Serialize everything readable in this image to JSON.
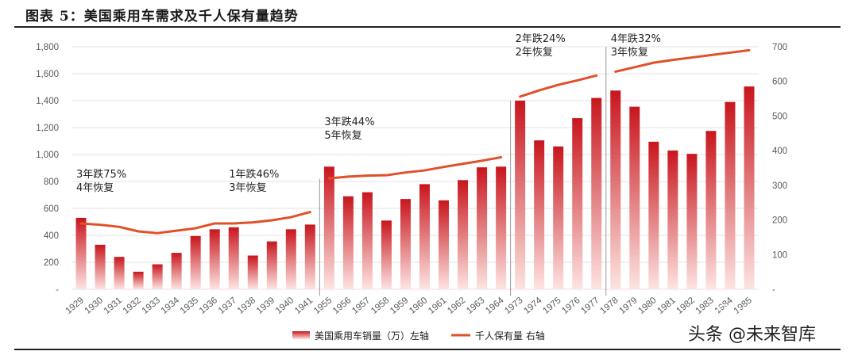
{
  "figure": {
    "title": "图表 5：美国乘用车需求及千人保有量趋势"
  },
  "watermark": {
    "text": "头条 @未来智库",
    "ghost_text": "未来智库"
  },
  "chart_data": {
    "type": "bar",
    "categories": [
      "1929",
      "1930",
      "1931",
      "1932",
      "1933",
      "1934",
      "1935",
      "1936",
      "1937",
      "1938",
      "1939",
      "1940",
      "1941",
      "1955",
      "1956",
      "1957",
      "1958",
      "1959",
      "1960",
      "1961",
      "1962",
      "1963",
      "1964",
      "1973",
      "1974",
      "1975",
      "1976",
      "1977",
      "1978",
      "1979",
      "1980",
      "1981",
      "1982",
      "1983",
      "1984",
      "1985"
    ],
    "series": [
      {
        "name": "美国乘用车销量（万）左轴",
        "kind": "bar",
        "axis": "left",
        "values": [
          530,
          330,
          240,
          130,
          185,
          270,
          395,
          445,
          460,
          250,
          355,
          445,
          480,
          910,
          690,
          720,
          510,
          670,
          780,
          660,
          810,
          905,
          910,
          1400,
          1105,
          1060,
          1270,
          1420,
          1475,
          1355,
          1095,
          1030,
          1005,
          1175,
          1390,
          1505
        ]
      },
      {
        "name": "千人保有量 右轴",
        "kind": "line",
        "axis": "right",
        "values": [
          190,
          186,
          180,
          167,
          162,
          169,
          176,
          190,
          190,
          193,
          199,
          208,
          223,
          320,
          325,
          328,
          329,
          337,
          343,
          353,
          362,
          371,
          381,
          556,
          574,
          590,
          603,
          617,
          628,
          641,
          654,
          662,
          669,
          676,
          683,
          690
        ]
      }
    ],
    "breaks_after": [
      "1941",
      "1964",
      "1977"
    ],
    "y_left": {
      "min": 0,
      "max": 1800,
      "step": 200,
      "ticks": [
        "-",
        "200",
        "400",
        "600",
        "800",
        "1,000",
        "1,200",
        "1,400",
        "1,600",
        "1,800"
      ]
    },
    "y_right": {
      "min": 0,
      "max": 700,
      "step": 100,
      "ticks": [
        "-",
        "100",
        "200",
        "300",
        "400",
        "500",
        "600",
        "700"
      ]
    },
    "annotations": [
      {
        "lines": [
          "3年跌75%",
          "4年恢复"
        ],
        "anchor": "1929"
      },
      {
        "lines": [
          "1年跌46%",
          "3年恢复"
        ],
        "anchor": "1937"
      },
      {
        "lines": [
          "3年跌44%",
          "5年恢复"
        ],
        "anchor": "1955"
      },
      {
        "lines": [
          "2年跌24%",
          "2年恢复"
        ],
        "anchor": "1973"
      },
      {
        "lines": [
          "4年跌32%",
          "3年恢复"
        ],
        "anchor": "1978"
      }
    ],
    "bar_color_top": "#c8161d",
    "bar_color_bottom": "#fde4e2",
    "line_color": "#e0502a",
    "grid": true,
    "legend_position": "bottom"
  }
}
